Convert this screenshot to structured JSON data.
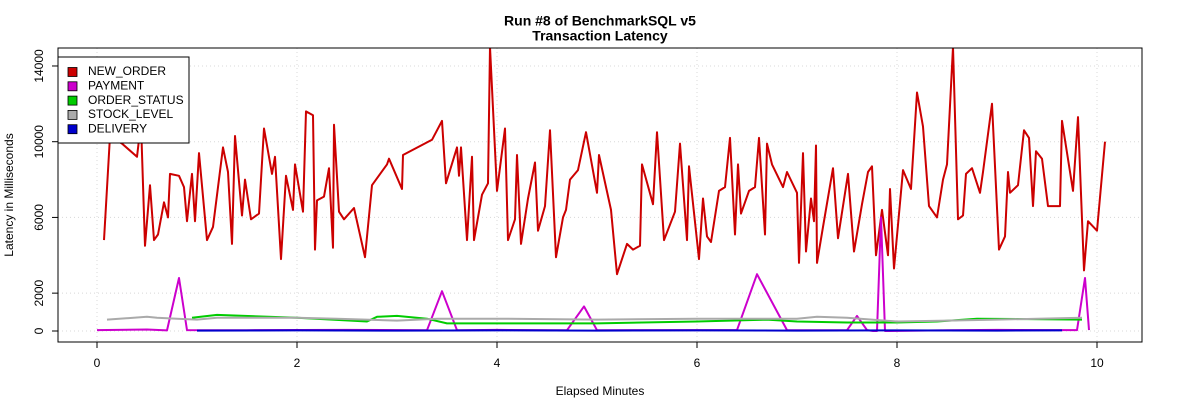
{
  "chart_data": {
    "type": "line",
    "title": "Run #8 of BenchmarkSQL v5",
    "subtitle": "Transaction Latency",
    "x_label": "Elapsed Minutes",
    "y_label": "Latency in Milliseconds",
    "xlim": [
      -0.39,
      10.45
    ],
    "ylim": [
      -581,
      14950
    ],
    "xticks": [
      0,
      2,
      4,
      6,
      8,
      10
    ],
    "yticks": [
      0,
      2000,
      6000,
      10000,
      14000
    ],
    "grid": true,
    "legend": "top-left",
    "series": [
      {
        "name": "NEW_ORDER",
        "color": "#cc0000",
        "x": [
          0.07,
          0.13,
          0.25,
          0.4,
          0.44,
          0.48,
          0.53,
          0.57,
          0.61,
          0.67,
          0.71,
          0.73,
          0.82,
          0.87,
          0.9,
          0.95,
          0.98,
          1.02,
          1.1,
          1.16,
          1.26,
          1.31,
          1.35,
          1.38,
          1.45,
          1.48,
          1.54,
          1.62,
          1.67,
          1.75,
          1.78,
          1.84,
          1.89,
          1.96,
          1.98,
          2.06,
          2.09,
          2.16,
          2.18,
          2.2,
          2.27,
          2.32,
          2.36,
          2.37,
          2.42,
          2.47,
          2.57,
          2.68,
          2.75,
          2.9,
          2.92,
          3.05,
          3.06,
          3.35,
          3.45,
          3.49,
          3.6,
          3.62,
          3.64,
          3.7,
          3.75,
          3.77,
          3.85,
          3.91,
          3.93,
          4.0,
          4.08,
          4.11,
          4.18,
          4.2,
          4.24,
          4.31,
          4.38,
          4.41,
          4.48,
          4.53,
          4.59,
          4.66,
          4.69,
          4.73,
          4.81,
          4.89,
          5.0,
          5.02,
          5.14,
          5.2,
          5.3,
          5.36,
          5.43,
          5.45,
          5.56,
          5.6,
          5.67,
          5.78,
          5.83,
          5.9,
          5.92,
          6.02,
          6.06,
          6.1,
          6.14,
          6.22,
          6.28,
          6.33,
          6.38,
          6.41,
          6.44,
          6.52,
          6.58,
          6.62,
          6.68,
          6.7,
          6.75,
          6.86,
          6.9,
          7.0,
          7.02,
          7.06,
          7.09,
          7.14,
          7.17,
          7.19,
          7.2,
          7.26,
          7.36,
          7.41,
          7.51,
          7.57,
          7.65,
          7.71,
          7.75,
          7.79,
          7.85,
          7.91,
          7.93,
          7.97,
          8.06,
          8.14,
          8.2,
          8.26,
          8.32,
          8.4,
          8.46,
          8.5,
          8.56,
          8.61,
          8.66,
          8.69,
          8.75,
          8.83,
          8.86,
          8.95,
          9.02,
          9.08,
          9.11,
          9.13,
          9.21,
          9.27,
          9.32,
          9.36,
          9.39,
          9.45,
          9.51,
          9.63,
          9.65,
          9.76,
          9.81,
          9.87,
          9.91,
          10.0,
          10.08
        ],
        "values": [
          4800,
          10300,
          9900,
          9200,
          11000,
          4500,
          7700,
          4800,
          5100,
          6800,
          6000,
          8300,
          8200,
          7600,
          5800,
          8300,
          5800,
          9400,
          4800,
          5500,
          9700,
          8400,
          4600,
          10300,
          6100,
          8000,
          5900,
          6200,
          10700,
          8300,
          9200,
          3800,
          8200,
          6400,
          8800,
          6300,
          11600,
          11400,
          4300,
          6900,
          7100,
          8600,
          4400,
          10900,
          6300,
          5900,
          6500,
          3900,
          7700,
          8800,
          9100,
          7500,
          9300,
          10100,
          11100,
          7800,
          9700,
          8200,
          9700,
          4800,
          9200,
          4800,
          7200,
          7800,
          15000,
          7400,
          10700,
          4800,
          5900,
          9300,
          4600,
          7000,
          8900,
          5300,
          6600,
          10600,
          3900,
          6000,
          6400,
          8000,
          8500,
          10500,
          7300,
          9300,
          6400,
          3000,
          4600,
          4300,
          4500,
          8800,
          6700,
          10500,
          4800,
          6300,
          9900,
          4800,
          8700,
          3800,
          7000,
          5000,
          4700,
          7400,
          7600,
          10200,
          5100,
          8800,
          6200,
          7400,
          7600,
          10200,
          5100,
          9900,
          8800,
          7600,
          8400,
          7300,
          3600,
          9400,
          4200,
          7000,
          5800,
          9800,
          3600,
          5500,
          8600,
          4900,
          8300,
          4200,
          6700,
          8400,
          8700,
          4000,
          6400,
          4000,
          7500,
          3300,
          8500,
          7500,
          12600,
          10800,
          6600,
          6000,
          8000,
          8800,
          15000,
          5900,
          6100,
          8300,
          8600,
          7300,
          8400,
          12000,
          4300,
          5000,
          8400,
          7300,
          7700,
          10600,
          10200,
          6600,
          9500,
          9100,
          6600,
          6600,
          11100,
          7400,
          11300,
          3200,
          5800,
          5300,
          10000
        ]
      },
      {
        "name": "PAYMENT",
        "color": "#cc00cc",
        "x": [
          0.0,
          0.5,
          0.7,
          0.82,
          0.9,
          1.5,
          2.5,
          3.3,
          3.45,
          3.6,
          4.0,
          4.7,
          4.87,
          5.0,
          6.0,
          6.4,
          6.6,
          6.9,
          7.5,
          7.6,
          7.7,
          7.76,
          7.8,
          7.84,
          7.88,
          7.93,
          8.5,
          9.0,
          9.8,
          9.88,
          9.92
        ],
        "values": [
          50,
          80,
          30,
          2800,
          50,
          40,
          60,
          40,
          2100,
          40,
          60,
          40,
          1300,
          40,
          50,
          50,
          3000,
          50,
          40,
          800,
          50,
          0,
          0,
          6000,
          0,
          0,
          40,
          60,
          50,
          2800,
          50
        ]
      },
      {
        "name": "ORDER_STATUS",
        "color": "#00cc00",
        "x": [
          0.95,
          1.2,
          2.0,
          2.7,
          2.8,
          3.0,
          3.3,
          3.5,
          5.0,
          6.0,
          6.7,
          7.0,
          7.5,
          8.0,
          8.4,
          8.8,
          9.85
        ],
        "values": [
          700,
          850,
          700,
          500,
          750,
          800,
          650,
          400,
          400,
          500,
          600,
          500,
          450,
          450,
          500,
          650,
          600
        ]
      },
      {
        "name": "STOCK_LEVEL",
        "color": "#aaaaaa",
        "x": [
          0.1,
          0.5,
          0.6,
          0.8,
          1.0,
          1.2,
          2.0,
          2.4,
          3.0,
          3.4,
          4.0,
          5.0,
          6.0,
          7.0,
          7.2,
          7.5,
          8.0,
          8.5,
          9.0,
          9.85
        ],
        "values": [
          600,
          750,
          700,
          650,
          600,
          700,
          700,
          650,
          550,
          650,
          650,
          600,
          650,
          650,
          750,
          700,
          500,
          550,
          600,
          700
        ]
      },
      {
        "name": "DELIVERY",
        "color": "#0000cc",
        "x": [
          1.0,
          2.0,
          3.0,
          4.0,
          5.0,
          6.0,
          7.0,
          8.0,
          9.0,
          9.65
        ],
        "values": [
          20,
          30,
          20,
          30,
          20,
          30,
          20,
          30,
          20,
          30
        ]
      }
    ]
  }
}
